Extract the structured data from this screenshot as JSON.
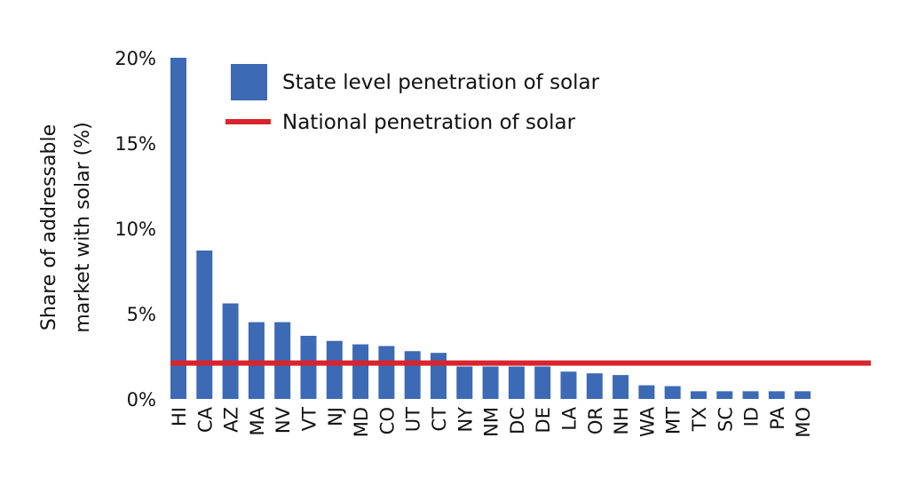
{
  "chart_data": {
    "type": "bar",
    "title": "",
    "xlabel": "",
    "ylabel_lines": [
      "Share of addressable",
      "market with solar (%)"
    ],
    "ylabel": "Share of addressable market with solar (%)",
    "ylim": [
      0,
      20
    ],
    "yticks": [
      0,
      5,
      10,
      15,
      20
    ],
    "ytick_labels": [
      "0%",
      "5%",
      "10%",
      "15%",
      "20%"
    ],
    "grid": false,
    "legend_position": "top-left",
    "categories": [
      "HI",
      "CA",
      "AZ",
      "MA",
      "NV",
      "VT",
      "NJ",
      "MD",
      "CO",
      "UT",
      "CT",
      "NY",
      "NM",
      "DC",
      "DE",
      "LA",
      "OR",
      "NH",
      "WA",
      "MT",
      "TX",
      "SC",
      "ID",
      "PA",
      "MO"
    ],
    "series": [
      {
        "name": "State level penetration of solar",
        "color": "#3c6ab4",
        "values": [
          20.0,
          8.7,
          5.6,
          4.5,
          4.5,
          3.7,
          3.4,
          3.2,
          3.1,
          2.8,
          2.7,
          1.9,
          1.9,
          1.9,
          1.9,
          1.6,
          1.5,
          1.4,
          0.8,
          0.75,
          0.45,
          0.45,
          0.45,
          0.45,
          0.45
        ]
      }
    ],
    "reference_lines": [
      {
        "name": "National penetration of solar",
        "color": "#d9242d",
        "value": 2.1
      }
    ],
    "legend": [
      {
        "label": "State level penetration of solar",
        "kind": "box",
        "color": "#3c6ab4"
      },
      {
        "label": "National penetration of solar",
        "kind": "line",
        "color": "#d9242d"
      }
    ]
  }
}
